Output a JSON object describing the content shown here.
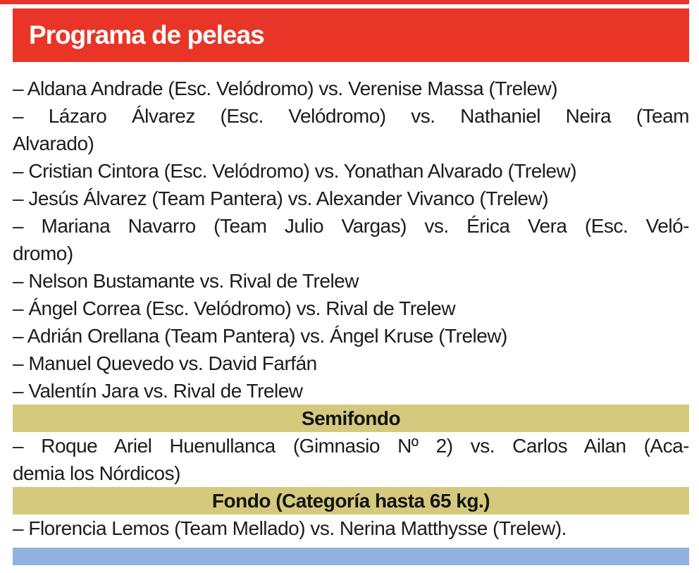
{
  "colors": {
    "red": "#e93528",
    "tan": "#d5c97e",
    "blue": "#91b2de",
    "ink": "#1c1c1c"
  },
  "header": {
    "title": "Programa de peleas"
  },
  "main": {
    "fights": [
      {
        "lines": [
          "– Aldana Andrade (Esc. Velódromo) vs. Verenise Massa (Trelew)"
        ]
      },
      {
        "lines": [
          "– Lázaro Álvarez (Esc. Velódromo) vs. Nathaniel Neira (Team",
          "Alvarado)"
        ]
      },
      {
        "lines": [
          "– Cristian Cintora (Esc. Velódromo) vs. Yonathan Alvarado (Trelew)"
        ]
      },
      {
        "lines": [
          "– Jesús Álvarez (Team Pantera) vs. Alexander Vivanco (Trelew)"
        ]
      },
      {
        "lines": [
          "– Mariana Navarro (Team Julio Vargas) vs. Érica Vera (Esc. Veló-",
          "dromo)"
        ]
      },
      {
        "lines": [
          "– Nelson Bustamante vs. Rival de Trelew"
        ]
      },
      {
        "lines": [
          "– Ángel Correa (Esc. Velódromo) vs. Rival de Trelew"
        ]
      },
      {
        "lines": [
          "– Adrián Orellana (Team Pantera) vs. Ángel Kruse (Trelew)"
        ]
      },
      {
        "lines": [
          "– Manuel Quevedo vs. David Farfán"
        ]
      },
      {
        "lines": [
          "– Valentín Jara vs. Rival de Trelew"
        ]
      }
    ],
    "sections": [
      {
        "title": "Semifondo",
        "fights": [
          {
            "lines": [
              "– Roque Ariel Huenullanca (Gimnasio Nº 2) vs. Carlos Ailan (Aca-",
              "demia los Nórdicos)"
            ]
          }
        ]
      },
      {
        "title": "Fondo (Categoría hasta 65 kg.)",
        "fights": [
          {
            "lines": [
              "– Florencia Lemos (Team Mellado) vs. Nerina Matthysse (Trelew)."
            ]
          }
        ]
      }
    ]
  }
}
